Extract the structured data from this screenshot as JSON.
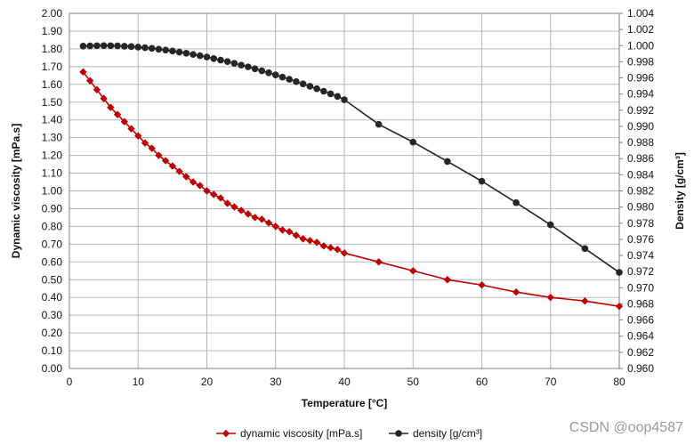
{
  "chart_data": {
    "type": "line",
    "title": "",
    "xlabel": "Temperature  [°C]",
    "ylabel_left": "Dynamic viscosity [mPa.s]",
    "ylabel_right": "Density  [g/cm³]",
    "xlim": [
      0,
      80
    ],
    "ylim_left": [
      0.0,
      2.0
    ],
    "ylim_right": [
      0.96,
      1.004
    ],
    "grid": true,
    "legend_position": "bottom-center",
    "x_ticks": [
      "0",
      "10",
      "20",
      "30",
      "40",
      "50",
      "60",
      "70",
      "80"
    ],
    "y_left_ticks": [
      "0.00",
      "0.10",
      "0.20",
      "0.30",
      "0.40",
      "0.50",
      "0.60",
      "0.70",
      "0.80",
      "0.90",
      "1.00",
      "1.10",
      "1.20",
      "1.30",
      "1.40",
      "1.50",
      "1.60",
      "1.70",
      "1.80",
      "1.90",
      "2.00"
    ],
    "y_right_ticks": [
      "0.960",
      "0.962",
      "0.964",
      "0.966",
      "0.968",
      "0.970",
      "0.972",
      "0.974",
      "0.976",
      "0.978",
      "0.980",
      "0.982",
      "0.984",
      "0.986",
      "0.988",
      "0.990",
      "0.992",
      "0.994",
      "0.996",
      "0.998",
      "1.000",
      "1.002",
      "1.004"
    ],
    "series": [
      {
        "name": "dynamic viscosity [mPa.s]",
        "axis": "left",
        "color": "#c00000",
        "marker": "diamond",
        "x": [
          2,
          3,
          4,
          5,
          6,
          7,
          8,
          9,
          10,
          11,
          12,
          13,
          14,
          15,
          16,
          17,
          18,
          19,
          20,
          21,
          22,
          23,
          24,
          25,
          26,
          27,
          28,
          29,
          30,
          31,
          32,
          33,
          34,
          35,
          36,
          37,
          38,
          39,
          40,
          45,
          50,
          55,
          60,
          65,
          70,
          75,
          80
        ],
        "y": [
          1.67,
          1.62,
          1.57,
          1.52,
          1.47,
          1.43,
          1.39,
          1.35,
          1.31,
          1.27,
          1.24,
          1.2,
          1.17,
          1.14,
          1.11,
          1.08,
          1.05,
          1.03,
          1.0,
          0.98,
          0.96,
          0.93,
          0.91,
          0.89,
          0.87,
          0.85,
          0.84,
          0.82,
          0.8,
          0.78,
          0.77,
          0.75,
          0.73,
          0.72,
          0.71,
          0.69,
          0.68,
          0.67,
          0.65,
          0.6,
          0.55,
          0.5,
          0.47,
          0.43,
          0.4,
          0.38,
          0.35
        ]
      },
      {
        "name": "density [g/cm³]",
        "axis": "right",
        "color": "#262626",
        "marker": "circle",
        "x": [
          2,
          3,
          4,
          5,
          6,
          7,
          8,
          9,
          10,
          11,
          12,
          13,
          14,
          15,
          16,
          17,
          18,
          19,
          20,
          21,
          22,
          23,
          24,
          25,
          26,
          27,
          28,
          29,
          30,
          31,
          32,
          33,
          34,
          35,
          36,
          37,
          38,
          39,
          40,
          45,
          50,
          55,
          60,
          65,
          70,
          75,
          80
        ],
        "y": [
          0.99994,
          0.99997,
          0.99999,
          1.0,
          0.99999,
          0.99997,
          0.99993,
          0.99988,
          0.99982,
          0.99975,
          0.99966,
          0.99956,
          0.99945,
          0.99933,
          0.9992,
          0.99906,
          0.99891,
          0.99875,
          0.99859,
          0.9984,
          0.99821,
          0.99802,
          0.99781,
          0.99759,
          0.99737,
          0.99713,
          0.99688,
          0.99663,
          0.99637,
          0.9961,
          0.99583,
          0.99554,
          0.99526,
          0.99496,
          0.99466,
          0.99435,
          0.99403,
          0.99371,
          0.9933,
          0.99025,
          0.98805,
          0.98565,
          0.9832,
          0.98055,
          0.9778,
          0.97485,
          0.9719
        ]
      }
    ]
  },
  "watermark": "CSDN @oop4587"
}
